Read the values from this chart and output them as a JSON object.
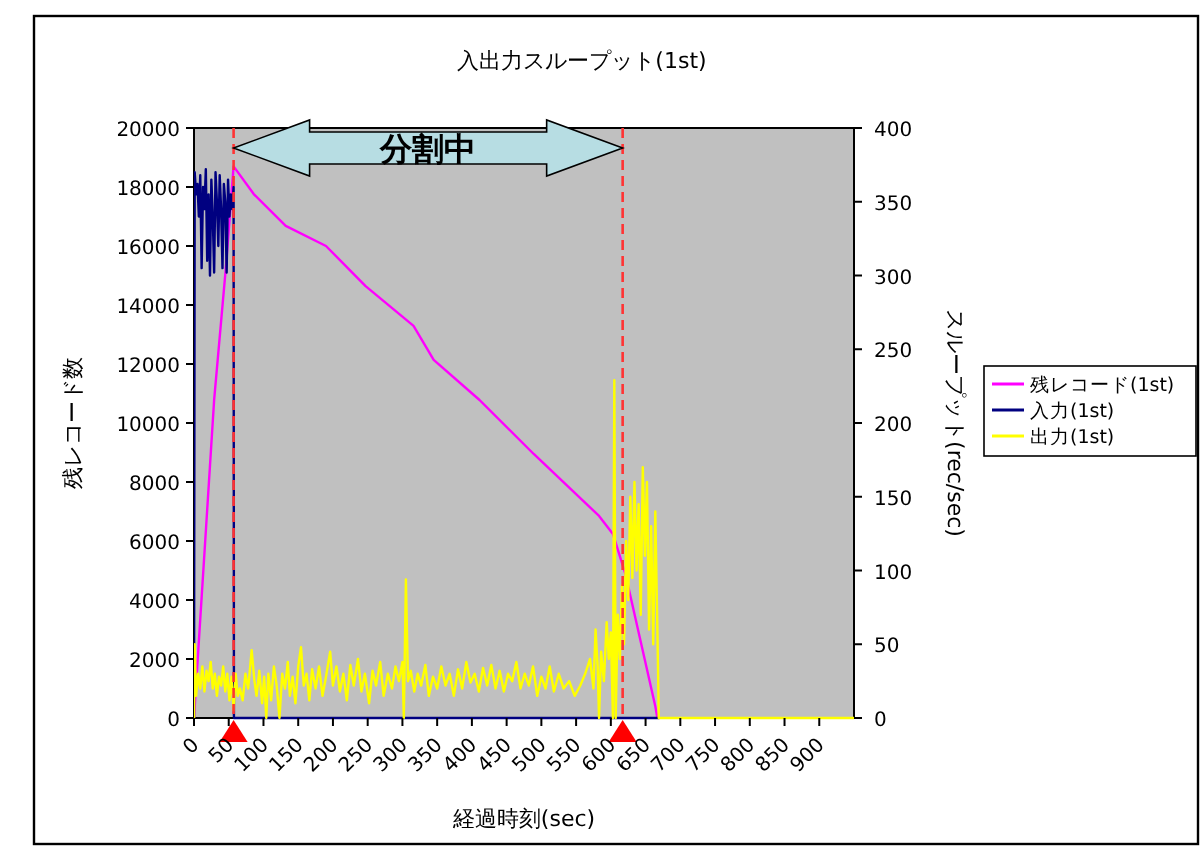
{
  "chart_data": {
    "type": "line",
    "title": "入出力スループット(1st)",
    "xlabel": "経過時刻(sec)",
    "ylabel": "残レコード数",
    "y2label": "スループット(rec/sec)",
    "xlim": [
      0,
      950
    ],
    "xticks": [
      0,
      50,
      100,
      150,
      200,
      250,
      300,
      350,
      400,
      450,
      500,
      550,
      600,
      650,
      700,
      750,
      800,
      850,
      900
    ],
    "ylim": [
      0,
      20000
    ],
    "yticks": [
      0,
      2000,
      4000,
      6000,
      8000,
      10000,
      12000,
      14000,
      16000,
      18000,
      20000
    ],
    "y2lim": [
      0,
      400
    ],
    "y2ticks": [
      0,
      50,
      100,
      150,
      200,
      250,
      300,
      350,
      400
    ],
    "legend": "right",
    "grid": false,
    "marker": "none",
    "line_style": "solid",
    "annotations": [
      "分割中"
    ],
    "ref_lines": [
      {
        "axis": "x",
        "value": 57,
        "label": null,
        "color": "#ff3333",
        "line_style": "dashed"
      },
      {
        "axis": "x",
        "value": 617,
        "label": null,
        "color": "#ff3333",
        "line_style": "dashed"
      }
    ],
    "series": [
      {
        "name": "残レコード(1st)",
        "color": "#ff00ff",
        "x": [
          0,
          29,
          46,
          57,
          86,
          132,
          190,
          247,
          316,
          345,
          411,
          489,
          583,
          603,
          621,
          664,
          667
        ],
        "values": [
          0,
          10780,
          15300,
          18700,
          17760,
          16680,
          16000,
          14640,
          13290,
          12140,
          10780,
          8950,
          6850,
          6240,
          4880,
          400,
          0
        ]
      },
      {
        "name": "入力(1st)",
        "color": "#000080",
        "axis": "y2",
        "x": [
          0,
          1,
          3,
          5,
          7,
          9,
          11,
          13,
          15,
          17,
          19,
          21,
          23,
          25,
          27,
          29,
          31,
          33,
          35,
          37,
          39,
          41,
          43,
          45,
          47,
          49,
          51,
          53,
          55,
          57,
          57.5,
          670
        ],
        "values": [
          0,
          370,
          355,
          362,
          340,
          368,
          305,
          360,
          345,
          372,
          310,
          355,
          300,
          365,
          340,
          302,
          370,
          350,
          320,
          368,
          345,
          305,
          362,
          350,
          302,
          365,
          340,
          355,
          345,
          360,
          0,
          0
        ]
      },
      {
        "name": "出力(1st)",
        "color": "#ffff00",
        "axis": "y2",
        "x": [
          0,
          1,
          3,
          6,
          9,
          12,
          15,
          18,
          21,
          24,
          27,
          30,
          33,
          36,
          39,
          42,
          45,
          48,
          51,
          54,
          57,
          60,
          63,
          66,
          70,
          74,
          78,
          83,
          87,
          90,
          94,
          98,
          101,
          104,
          107,
          111,
          115,
          119,
          123,
          127,
          131,
          135,
          138,
          142,
          146,
          150,
          154,
          158,
          162,
          166,
          170,
          175,
          180,
          185,
          190,
          196,
          200,
          205,
          210,
          215,
          220,
          225,
          230,
          236,
          241,
          246,
          252,
          257,
          262,
          268,
          273,
          279,
          285,
          290,
          295,
          300,
          302,
          305,
          308,
          312,
          317,
          322,
          327,
          333,
          338,
          344,
          350,
          356,
          362,
          368,
          374,
          380,
          386,
          392,
          398,
          404,
          410,
          416,
          422,
          428,
          434,
          440,
          446,
          452,
          458,
          464,
          470,
          476,
          482,
          488,
          494,
          500,
          506,
          512,
          518,
          525,
          532,
          540,
          548,
          556,
          563,
          570,
          575,
          578,
          581,
          583,
          586,
          590,
          594,
          597,
          600,
          603,
          605,
          607,
          610,
          613,
          616,
          619,
          622,
          625,
          628,
          631,
          634,
          637,
          640,
          643,
          646,
          649,
          652,
          655,
          658,
          661,
          664,
          667,
          669,
          800,
          950
        ],
        "values": [
          0,
          50,
          15,
          30,
          20,
          35,
          18,
          32,
          25,
          38,
          20,
          30,
          15,
          28,
          22,
          35,
          18,
          30,
          12,
          28,
          5,
          30,
          15,
          20,
          12,
          30,
          20,
          46,
          25,
          15,
          32,
          10,
          28,
          0,
          30,
          12,
          35,
          22,
          0,
          30,
          20,
          38,
          15,
          28,
          10,
          35,
          48,
          22,
          30,
          12,
          33,
          20,
          35,
          15,
          28,
          45,
          22,
          35,
          18,
          30,
          12,
          36,
          22,
          40,
          18,
          30,
          10,
          32,
          22,
          38,
          15,
          30,
          20,
          35,
          25,
          38,
          0,
          94,
          25,
          32,
          18,
          30,
          22,
          36,
          15,
          28,
          20,
          35,
          22,
          30,
          15,
          33,
          20,
          38,
          24,
          30,
          18,
          34,
          22,
          36,
          20,
          32,
          18,
          30,
          25,
          38,
          20,
          30,
          22,
          35,
          15,
          28,
          20,
          35,
          18,
          30,
          20,
          25,
          15,
          22,
          30,
          40,
          20,
          60,
          35,
          0,
          45,
          25,
          65,
          40,
          58,
          0,
          229,
          0,
          70,
          40,
          90,
          50,
          120,
          80,
          150,
          95,
          160,
          100,
          145,
          70,
          170,
          110,
          160,
          60,
          130,
          50,
          140,
          60,
          0,
          0,
          0
        ]
      }
    ]
  }
}
